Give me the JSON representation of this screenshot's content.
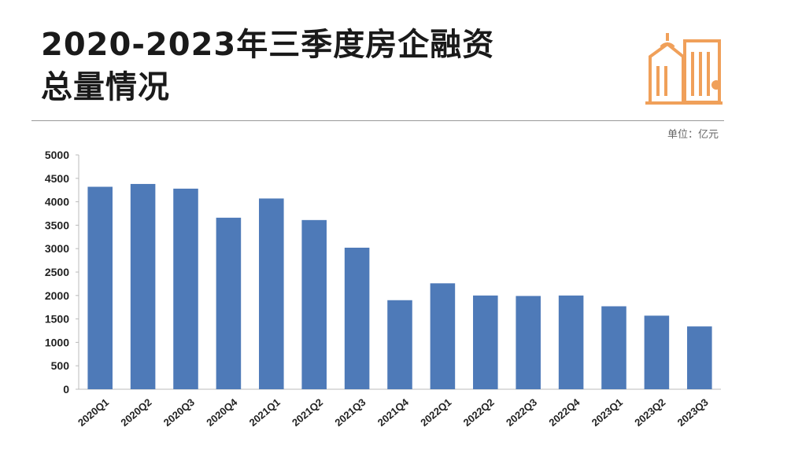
{
  "title_line1": "2020-2023年三季度房企融资",
  "title_line2": "总量情况",
  "unit_label": "单位：亿元",
  "icon": "building-icon",
  "colors": {
    "bar": "#4e7ab8",
    "icon": "#f0a05a",
    "divider": "#9a9a9a"
  },
  "chart_data": {
    "type": "bar",
    "categories": [
      "2020Q1",
      "2020Q2",
      "2020Q3",
      "2020Q4",
      "2021Q1",
      "2021Q2",
      "2021Q3",
      "2021Q4",
      "2022Q1",
      "2022Q2",
      "2022Q3",
      "2022Q4",
      "2023Q1",
      "2023Q2",
      "2023Q3"
    ],
    "values": [
      4320,
      4380,
      4280,
      3660,
      4070,
      3610,
      3020,
      1900,
      2260,
      2000,
      1990,
      2000,
      1770,
      1570,
      1340
    ],
    "yticks": [
      0,
      500,
      1000,
      1500,
      2000,
      2500,
      3000,
      3500,
      4000,
      4500,
      5000
    ],
    "ylim": [
      0,
      5000
    ],
    "grid": false,
    "legend": "none"
  }
}
